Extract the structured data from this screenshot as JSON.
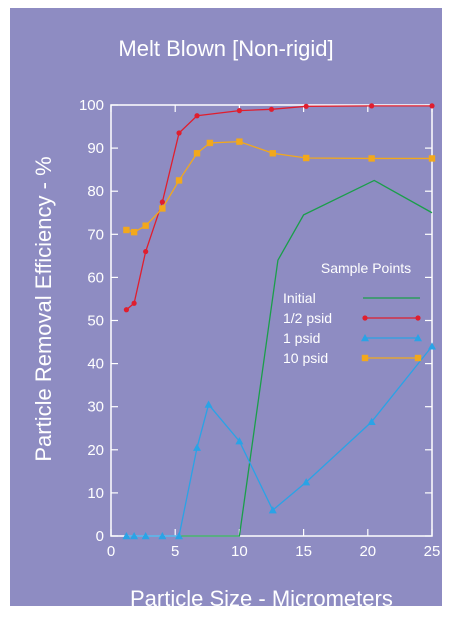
{
  "chart_data": {
    "type": "line",
    "title": "Melt Blown [Non-rigid]",
    "xlabel": "Particle Size - Micrometers",
    "ylabel": "Particle Removal Efficiency - %",
    "xlim": [
      0,
      25
    ],
    "ylim": [
      0,
      100
    ],
    "xticks": [
      0,
      5,
      10,
      15,
      20,
      25
    ],
    "yticks": [
      0,
      10,
      20,
      30,
      40,
      50,
      60,
      70,
      80,
      90,
      100
    ],
    "grid": false,
    "legend": {
      "title": "Sample Points",
      "placement": "center-right"
    },
    "series": [
      {
        "name": "Initial",
        "color": "#1a9e4a",
        "marker": "none",
        "x": [
          5.3,
          10,
          13,
          15,
          20.5,
          25
        ],
        "y": [
          0,
          0,
          64,
          74.5,
          82.5,
          75
        ]
      },
      {
        "name": "1/2 psid",
        "color": "#e01e2e",
        "marker": "circle",
        "x": [
          1.2,
          1.8,
          2.7,
          4.0,
          5.3,
          6.7,
          10,
          12.5,
          15.2,
          20.3,
          25
        ],
        "y": [
          52.5,
          54,
          66,
          77.5,
          93.5,
          97.5,
          98.7,
          99,
          99.7,
          99.8,
          99.8
        ]
      },
      {
        "name": "1 psid",
        "color": "#2aa3e6",
        "marker": "triangle",
        "x": [
          1.2,
          1.8,
          2.7,
          4.0,
          5.3,
          6.7,
          7.6,
          10,
          12.6,
          15.2,
          20.3,
          25
        ],
        "y": [
          0,
          0,
          0,
          0,
          0,
          20.5,
          30.5,
          22,
          6,
          12.5,
          26.5,
          44
        ]
      },
      {
        "name": "10 psid",
        "color": "#f2a81c",
        "marker": "square",
        "x": [
          1.2,
          1.8,
          2.7,
          4.0,
          5.3,
          6.7,
          7.7,
          10,
          12.6,
          15.2,
          20.3,
          25
        ],
        "y": [
          71,
          70.5,
          72,
          76,
          82.5,
          88.8,
          91.2,
          91.5,
          88.8,
          87.7,
          87.6,
          87.6
        ]
      }
    ]
  }
}
